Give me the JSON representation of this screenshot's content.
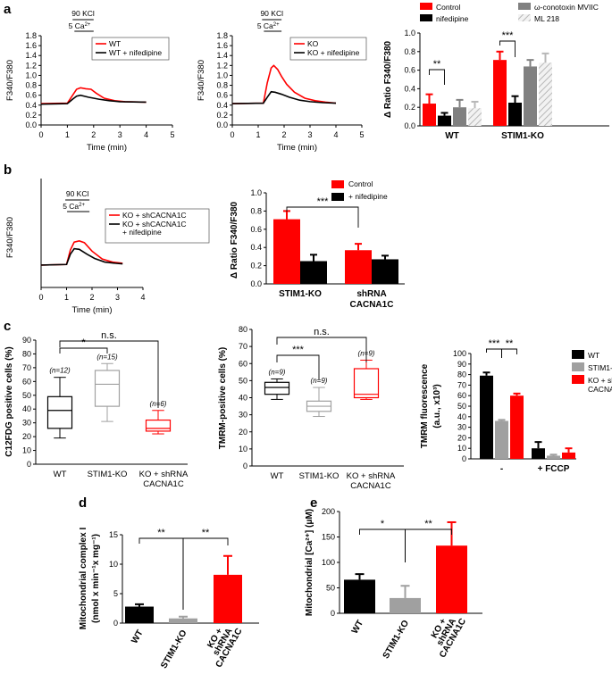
{
  "panels": {
    "a": "a",
    "b": "b",
    "c": "c",
    "d": "d",
    "e": "e"
  },
  "colors": {
    "red": "#ff0000",
    "black": "#000000",
    "gray": "#808080",
    "lightgray": "#b0b0b0",
    "hatch": "#d0d0d0"
  },
  "chart_data": [
    {
      "id": "a1",
      "type": "line",
      "stim_label": "90 KCl",
      "stim_sub": "5 Ca",
      "xlabel": "Time (min)",
      "ylabel": "F340/F380",
      "xlim": [
        0,
        5
      ],
      "ylim": [
        0,
        1.8
      ],
      "xticks": [
        "0",
        "1",
        "2",
        "3",
        "4",
        "5"
      ],
      "yticks": [
        "0.0",
        "0.2",
        "0.4",
        "0.6",
        "0.8",
        "1.0",
        "1.2",
        "1.4",
        "1.6",
        "1.8"
      ],
      "series": [
        {
          "name": "WT",
          "color": "#ff0000",
          "x": [
            0,
            1.0,
            1.2,
            1.35,
            1.5,
            1.7,
            1.9,
            2.1,
            2.4,
            2.8,
            3.2,
            4.0
          ],
          "y": [
            0.43,
            0.44,
            0.6,
            0.72,
            0.75,
            0.73,
            0.72,
            0.64,
            0.54,
            0.49,
            0.47,
            0.46
          ]
        },
        {
          "name": "WT + nifedipine",
          "color": "#000000",
          "x": [
            0,
            1.0,
            1.2,
            1.35,
            1.5,
            1.8,
            2.2,
            2.6,
            3.0,
            4.0
          ],
          "y": [
            0.42,
            0.43,
            0.52,
            0.58,
            0.6,
            0.56,
            0.52,
            0.49,
            0.47,
            0.46
          ]
        }
      ]
    },
    {
      "id": "a2",
      "type": "line",
      "stim_label": "90 KCl",
      "stim_sub": "5 Ca",
      "xlabel": "Time (min)",
      "ylabel": "F340/F380",
      "xlim": [
        0,
        5
      ],
      "ylim": [
        0,
        1.8
      ],
      "xticks": [
        "0",
        "1",
        "2",
        "3",
        "4",
        "5"
      ],
      "yticks": [
        "0.0",
        "0.2",
        "0.4",
        "0.6",
        "0.8",
        "1.0",
        "1.2",
        "1.4",
        "1.6",
        "1.8"
      ],
      "series": [
        {
          "name": "KO",
          "color": "#ff0000",
          "x": [
            0,
            1.2,
            1.35,
            1.5,
            1.6,
            1.75,
            1.9,
            2.1,
            2.4,
            2.8,
            3.2,
            3.6,
            4.0
          ],
          "y": [
            0.43,
            0.44,
            0.85,
            1.15,
            1.2,
            1.12,
            0.98,
            0.82,
            0.66,
            0.54,
            0.49,
            0.46,
            0.44
          ]
        },
        {
          "name": "KO + nifedipine",
          "color": "#000000",
          "x": [
            0,
            1.2,
            1.35,
            1.5,
            1.65,
            1.9,
            2.2,
            2.6,
            3.0,
            3.5,
            4.0
          ],
          "y": [
            0.43,
            0.44,
            0.56,
            0.67,
            0.66,
            0.62,
            0.56,
            0.5,
            0.47,
            0.45,
            0.44
          ]
        }
      ]
    },
    {
      "id": "a3",
      "type": "bar",
      "ylabel": "Δ Ratio F340/F380",
      "ylim": [
        0,
        1.0
      ],
      "yticks": [
        "0.0",
        "0.2",
        "0.4",
        "0.6",
        "0.8",
        "1.0"
      ],
      "categories": [
        "WT",
        "STIM1-KO"
      ],
      "series": [
        {
          "name": "Control",
          "color": "#ff0000",
          "values": [
            0.24,
            0.71
          ],
          "errors": [
            0.1,
            0.09
          ]
        },
        {
          "name": "nifedipine",
          "color": "#000000",
          "values": [
            0.11,
            0.25
          ],
          "errors": [
            0.03,
            0.07
          ]
        },
        {
          "name": "ω-conotoxin MVIIC",
          "color": "#808080",
          "values": [
            0.2,
            0.64
          ],
          "errors": [
            0.08,
            0.07
          ]
        },
        {
          "name": "ML 218",
          "color": "#d0d0d0",
          "hatch": true,
          "values": [
            0.19,
            0.68
          ],
          "errors": [
            0.07,
            0.1
          ]
        }
      ],
      "significance": [
        {
          "label": "**",
          "between": "WT Control vs nifedipine"
        },
        {
          "label": "***",
          "between": "STIM1-KO Control vs nifedipine"
        }
      ]
    },
    {
      "id": "b1",
      "type": "line",
      "stim_label": "90 KCl",
      "stim_sub": "5 Ca",
      "xlabel": "Time (min)",
      "ylabel": "F340/F380",
      "xlim": [
        0,
        4
      ],
      "ylim": [
        0,
        1.8
      ],
      "xticks": [
        "0",
        "1",
        "2",
        "3",
        "4"
      ],
      "series": [
        {
          "name": "KO + shCACNA1C",
          "color": "#ff0000",
          "x": [
            0,
            1.0,
            1.15,
            1.3,
            1.5,
            1.7,
            2.0,
            2.4,
            2.8,
            3.2
          ],
          "y": [
            0.37,
            0.38,
            0.62,
            0.75,
            0.77,
            0.74,
            0.6,
            0.47,
            0.42,
            0.4
          ]
        },
        {
          "name": "KO + shCACNA1C + nifedipine",
          "color": "#000000",
          "x": [
            0,
            1.0,
            1.15,
            1.3,
            1.5,
            1.8,
            2.1,
            2.5,
            2.9,
            3.2
          ],
          "y": [
            0.37,
            0.38,
            0.55,
            0.64,
            0.63,
            0.55,
            0.48,
            0.42,
            0.4,
            0.39
          ]
        }
      ]
    },
    {
      "id": "b2",
      "type": "bar",
      "ylabel": "Δ Ratio F340/F380",
      "ylim": [
        0,
        1.0
      ],
      "yticks": [
        "0.0",
        "0.2",
        "0.4",
        "0.6",
        "0.8",
        "1.0"
      ],
      "categories": [
        "STIM1-KO",
        "shRNA CACNA1C"
      ],
      "series": [
        {
          "name": "Control",
          "color": "#ff0000",
          "values": [
            0.71,
            0.37
          ],
          "errors": [
            0.09,
            0.07
          ]
        },
        {
          "name": "+ nifedipine",
          "color": "#000000",
          "values": [
            0.25,
            0.27
          ],
          "errors": [
            0.07,
            0.04
          ]
        }
      ],
      "significance": [
        {
          "label": "***",
          "between": "STIM1-KO Control vs shRNA CACNA1C Control"
        }
      ]
    },
    {
      "id": "c1",
      "type": "box",
      "ylabel": "C12FDG positive cells (%)",
      "ylim": [
        0,
        90
      ],
      "yticks": [
        "0",
        "10",
        "20",
        "30",
        "40",
        "50",
        "60",
        "70",
        "80",
        "90"
      ],
      "categories": [
        "WT",
        "STIM1-KO",
        "KO + shRNA CACNA1C"
      ],
      "n_labels": [
        "(n=12)",
        "(n=15)",
        "(n=6)"
      ],
      "colors": [
        "#000000",
        "#a0a0a0",
        "#ff0000"
      ],
      "boxes": [
        {
          "min": 19,
          "q1": 26,
          "median": 39,
          "q3": 49,
          "max": 63
        },
        {
          "min": 31,
          "q1": 42,
          "median": 58,
          "q3": 68,
          "max": 73
        },
        {
          "min": 22,
          "q1": 24,
          "median": 26,
          "q3": 32,
          "max": 39
        }
      ],
      "significance": [
        {
          "label": "*",
          "between": "WT vs STIM1-KO"
        },
        {
          "label": "n.s.",
          "between": "WT vs KO + shRNA CACNA1C"
        }
      ]
    },
    {
      "id": "c2",
      "type": "box",
      "ylabel": "TMRM-positive cells (%)",
      "ylim": [
        0,
        80
      ],
      "yticks": [
        "0",
        "10",
        "20",
        "30",
        "40",
        "50",
        "60",
        "70",
        "80"
      ],
      "categories": [
        "WT",
        "STIM1-KO",
        "KO + shRNA CACNA1C"
      ],
      "n_labels": [
        "(n=9)",
        "(n=9)",
        "(n=9)"
      ],
      "colors": [
        "#000000",
        "#a0a0a0",
        "#ff0000"
      ],
      "boxes": [
        {
          "min": 39,
          "q1": 42,
          "median": 46,
          "q3": 49,
          "max": 51
        },
        {
          "min": 29,
          "q1": 32,
          "median": 35,
          "q3": 38,
          "max": 46
        },
        {
          "min": 39,
          "q1": 40,
          "median": 42,
          "q3": 57,
          "max": 62
        }
      ],
      "significance": [
        {
          "label": "***",
          "between": "WT vs STIM1-KO"
        },
        {
          "label": "n.s.",
          "between": "WT vs KO + shRNA CACNA1C"
        }
      ]
    },
    {
      "id": "c3",
      "type": "bar",
      "ylabel_line1": "TMRM fluorescence",
      "ylabel_line2": "(a.u., x10³)",
      "ylim": [
        0,
        100
      ],
      "yticks": [
        "0",
        "10",
        "20",
        "30",
        "40",
        "50",
        "60",
        "70",
        "80",
        "90",
        "100"
      ],
      "categories": [
        "-",
        "+ FCCP"
      ],
      "series": [
        {
          "name": "WT",
          "color": "#000000",
          "values": [
            79,
            10
          ],
          "errors": [
            3,
            6
          ]
        },
        {
          "name": "STIM1-KO",
          "color": "#a0a0a0",
          "values": [
            36,
            3
          ],
          "errors": [
            1,
            1
          ]
        },
        {
          "name": "KO + shRNA CACNA1C",
          "color": "#ff0000",
          "values": [
            60,
            6
          ],
          "errors": [
            2,
            4
          ]
        }
      ],
      "significance": [
        {
          "label": "***",
          "between": "WT vs STIM1-KO"
        },
        {
          "label": "**",
          "between": "STIM1-KO vs KO + shRNA"
        }
      ]
    },
    {
      "id": "d",
      "type": "bar",
      "ylabel_line1": "Mitochondrial complex I",
      "ylabel_line2": "(nmol x min⁻¹x mg⁻¹)",
      "ylim": [
        0,
        15
      ],
      "yticks": [
        "0",
        "5",
        "10",
        "15"
      ],
      "categories": [
        "WT",
        "STIM1-KO",
        "KO + shRNA CACNA1C"
      ],
      "colors": [
        "#000000",
        "#a0a0a0",
        "#ff0000"
      ],
      "values": [
        2.8,
        0.8,
        8.2
      ],
      "errors": [
        0.4,
        0.3,
        3.2
      ],
      "significance": [
        {
          "label": "**",
          "between": "WT vs STIM1-KO"
        },
        {
          "label": "**",
          "between": "STIM1-KO vs KO + shRNA"
        }
      ]
    },
    {
      "id": "e",
      "type": "bar",
      "ylabel": "Mitochondrial [Ca²⁺] (μM)",
      "ylim": [
        0,
        200
      ],
      "yticks": [
        "0",
        "50",
        "100",
        "150",
        "200"
      ],
      "categories": [
        "WT",
        "STIM1-KO",
        "KO + shRNA CACNA1C"
      ],
      "colors": [
        "#000000",
        "#a0a0a0",
        "#ff0000"
      ],
      "values": [
        66,
        30,
        133
      ],
      "errors": [
        11,
        24,
        46
      ],
      "significance": [
        {
          "label": "*",
          "between": "WT vs STIM1-KO"
        },
        {
          "label": "**",
          "between": "STIM1-KO vs KO + shRNA"
        }
      ]
    }
  ]
}
